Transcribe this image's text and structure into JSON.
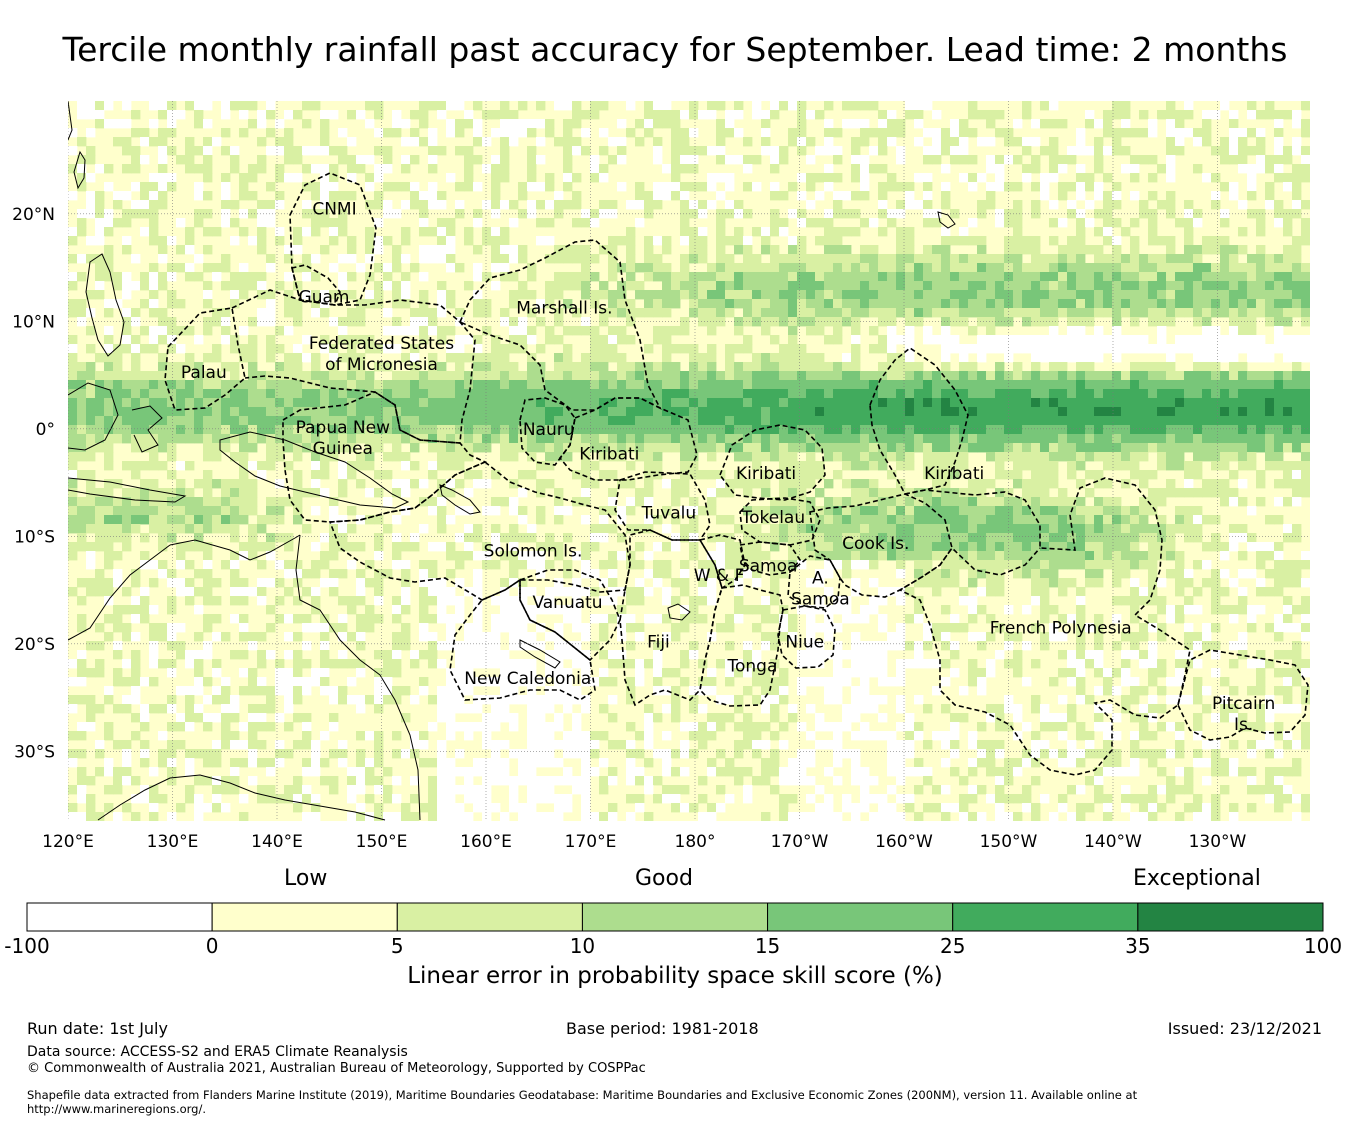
{
  "title": "Tercile monthly rainfall past accuracy for September. Lead time: 2 months",
  "map": {
    "lat_labels": [
      {
        "lat": 20,
        "label": "20°N"
      },
      {
        "lat": 10,
        "label": "10°N"
      },
      {
        "lat": 0,
        "label": "0°"
      },
      {
        "lat": -10,
        "label": "10°S"
      },
      {
        "lat": -20,
        "label": "20°S"
      },
      {
        "lat": -30,
        "label": "30°S"
      }
    ],
    "lon_labels": [
      {
        "lon": 120,
        "label": "120°E"
      },
      {
        "lon": 130,
        "label": "130°E"
      },
      {
        "lon": 140,
        "label": "140°E"
      },
      {
        "lon": 150,
        "label": "150°E"
      },
      {
        "lon": 160,
        "label": "160°E"
      },
      {
        "lon": 170,
        "label": "170°E"
      },
      {
        "lon": 180,
        "label": "180°"
      },
      {
        "lon": 190,
        "label": "170°W"
      },
      {
        "lon": 200,
        "label": "160°W"
      },
      {
        "lon": 210,
        "label": "150°W"
      },
      {
        "lon": 220,
        "label": "140°W"
      },
      {
        "lon": 230,
        "label": "130°W"
      }
    ],
    "regions": [
      {
        "lines": [
          "CNMI"
        ],
        "lon": 145.5,
        "lat": 20.5
      },
      {
        "lines": [
          "Guam"
        ],
        "lon": 144.5,
        "lat": 12.3
      },
      {
        "lines": [
          "Marshall Is."
        ],
        "lon": 167.5,
        "lat": 11.3
      },
      {
        "lines": [
          "Federated States",
          "of Micronesia"
        ],
        "lon": 150.0,
        "lat": 7.0
      },
      {
        "lines": [
          "Palau"
        ],
        "lon": 133.0,
        "lat": 5.3
      },
      {
        "lines": [
          "Papua New",
          "Guinea"
        ],
        "lon": 146.3,
        "lat": -0.8
      },
      {
        "lines": [
          "Nauru"
        ],
        "lon": 166.0,
        "lat": 0.0
      },
      {
        "lines": [
          "Kiribati"
        ],
        "lon": 171.8,
        "lat": -2.3
      },
      {
        "lines": [
          "Kiribati"
        ],
        "lon": 186.8,
        "lat": -4.1
      },
      {
        "lines": [
          "Kiribati"
        ],
        "lon": 204.8,
        "lat": -4.1
      },
      {
        "lines": [
          "Tuvalu"
        ],
        "lon": 177.5,
        "lat": -7.8
      },
      {
        "lines": [
          "Tokelau"
        ],
        "lon": 187.5,
        "lat": -8.2
      },
      {
        "lines": [
          "Solomon Is."
        ],
        "lon": 164.5,
        "lat": -11.3
      },
      {
        "lines": [
          "Cook Is."
        ],
        "lon": 197.3,
        "lat": -10.6
      },
      {
        "lines": [
          "Samoa"
        ],
        "lon": 187.0,
        "lat": -12.7
      },
      {
        "lines": [
          "W & F"
        ],
        "lon": 182.3,
        "lat": -13.6
      },
      {
        "lines": [
          "A.",
          "Samoa"
        ],
        "lon": 192.0,
        "lat": -14.8
      },
      {
        "lines": [
          "Vanuatu"
        ],
        "lon": 167.8,
        "lat": -16.1
      },
      {
        "lines": [
          "French Polynesia"
        ],
        "lon": 215.0,
        "lat": -18.5
      },
      {
        "lines": [
          "Fiji"
        ],
        "lon": 176.5,
        "lat": -19.8
      },
      {
        "lines": [
          "Niue"
        ],
        "lon": 190.5,
        "lat": -19.8
      },
      {
        "lines": [
          "Tonga"
        ],
        "lon": 185.5,
        "lat": -22.0
      },
      {
        "lines": [
          "New Caledonia"
        ],
        "lon": 164.0,
        "lat": -23.2
      },
      {
        "lines": [
          "Pitcairn",
          "Is."
        ],
        "lon": 232.5,
        "lat": -26.5
      }
    ]
  },
  "legend": {
    "categories": {
      "low": "Low",
      "good": "Good",
      "exceptional": "Exceptional"
    },
    "bins": [
      {
        "from": -100,
        "to": 0,
        "color": "#ffffff"
      },
      {
        "from": 0,
        "to": 5,
        "color": "#ffffcc"
      },
      {
        "from": 5,
        "to": 10,
        "color": "#d9f0a3"
      },
      {
        "from": 10,
        "to": 15,
        "color": "#addd8e"
      },
      {
        "from": 15,
        "to": 25,
        "color": "#78c679"
      },
      {
        "from": 25,
        "to": 35,
        "color": "#41ab5d"
      },
      {
        "from": 35,
        "to": 100,
        "color": "#238443"
      }
    ],
    "ticks": [
      "-100",
      "0",
      "5",
      "10",
      "15",
      "25",
      "35",
      "100"
    ],
    "axis_label": "Linear error in probability space skill score (%)"
  },
  "footer": {
    "run_date": "Run date: 1st July",
    "base_period": "Base period: 1981-2018",
    "issued": "Issued: 23/12/2021",
    "data_source": "Data source: ACCESS-S2 and ERA5 Climate Reanalysis",
    "copyright": "© Commonwealth of Australia 2021, Australian Bureau of Meteorology, Supported by COSPPac",
    "shapefile_line1": "Shapefile data extracted from Flanders Marine Institute (2019), Maritime Boundaries Geodatabase: Maritime Boundaries and Exclusive Economic Zones (200NM), version 11. Available online at",
    "shapefile_line2": "http://www.marineregions.org/."
  }
}
